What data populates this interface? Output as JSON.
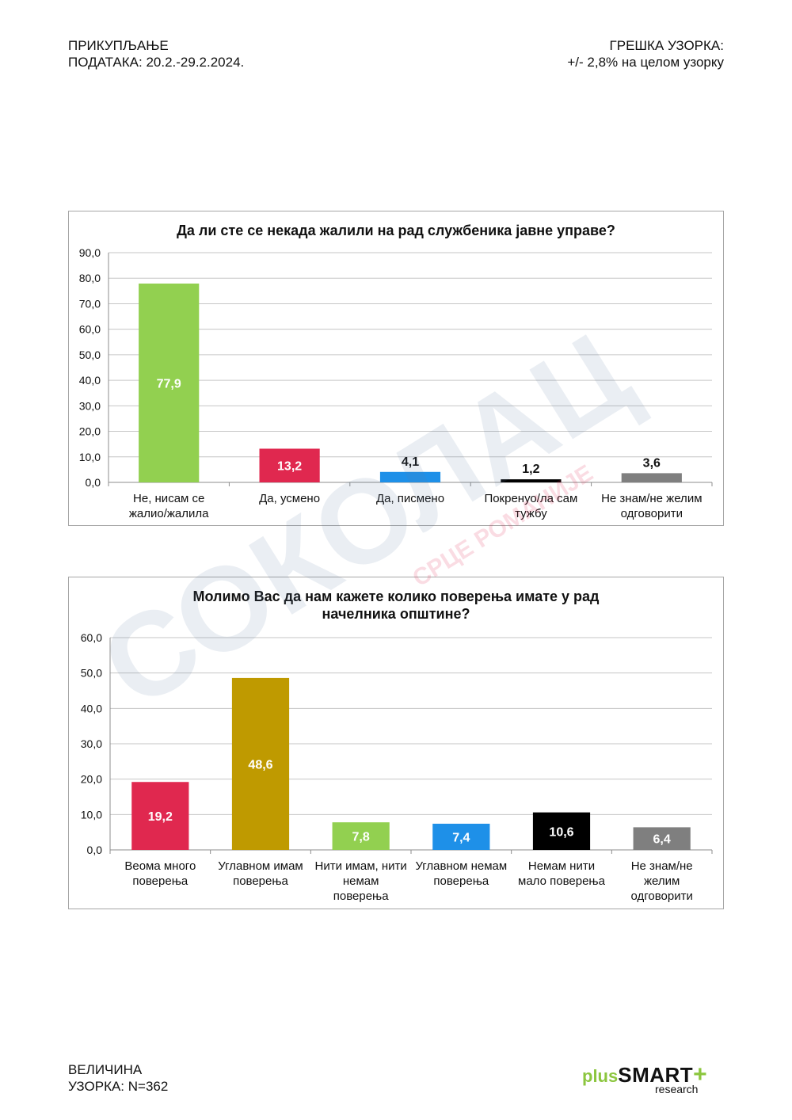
{
  "header": {
    "left_line1": "ПРИКУПЉАЊЕ",
    "left_line2": "ПОДАТАКА: 20.2.-29.2.2024.",
    "right_line1": "ГРЕШКА УЗОРКА:",
    "right_line2": "+/- 2,8% на целом узорку"
  },
  "footer": {
    "left_line1": "ВЕЛИЧИНА",
    "left_line2": "УЗОРКА: N=362"
  },
  "logo": {
    "plus": "plus",
    "smart": "SMART",
    "cross": "+",
    "research": "research"
  },
  "watermark": {
    "main": "СОКОЛАЦ",
    "sub": "СРЦЕ РОМАНИЈЕ"
  },
  "chart_data": [
    {
      "type": "bar",
      "title_lines": [
        "Да ли сте се некада жалили на рад службеника јавне управе?"
      ],
      "categories": [
        [
          "Не, нисам се",
          "жалио/жалила"
        ],
        [
          "Да, усмено"
        ],
        [
          "Да, писмено"
        ],
        [
          "Покренуо/ла сам",
          "тужбу"
        ],
        [
          "Не знам/не желим",
          "одговорити"
        ]
      ],
      "values": [
        77.9,
        13.2,
        4.1,
        1.2,
        3.6
      ],
      "value_labels": [
        "77,9",
        "13,2",
        "4,1",
        "1,2",
        "3,6"
      ],
      "colors": [
        "#92d050",
        "#e0284f",
        "#1e90e8",
        "#000000",
        "#7f7f7f"
      ],
      "label_inside": [
        true,
        true,
        false,
        false,
        false
      ],
      "yticks": [
        "0,0",
        "10,0",
        "20,0",
        "30,0",
        "40,0",
        "50,0",
        "60,0",
        "70,0",
        "80,0",
        "90,0"
      ],
      "ylim": [
        0,
        90
      ],
      "grid": true
    },
    {
      "type": "bar",
      "title_lines": [
        "Молимо Вас да нам кажете колико поверења имате у рад",
        "начелника општине?"
      ],
      "categories": [
        [
          "Веома много",
          "поверења"
        ],
        [
          "Углавном имам",
          "поверења"
        ],
        [
          "Нити имам, нити",
          "немам",
          "поверења"
        ],
        [
          "Углавном немам",
          "поверења"
        ],
        [
          "Немам нити",
          "мало поверења"
        ],
        [
          "Не знам/не",
          "желим",
          "одговорити"
        ]
      ],
      "values": [
        19.2,
        48.6,
        7.8,
        7.4,
        10.6,
        6.4
      ],
      "value_labels": [
        "19,2",
        "48,6",
        "7,8",
        "7,4",
        "10,6",
        "6,4"
      ],
      "colors": [
        "#e0284f",
        "#bf9a00",
        "#92d050",
        "#1e90e8",
        "#000000",
        "#7f7f7f"
      ],
      "label_inside": [
        true,
        true,
        true,
        true,
        true,
        true
      ],
      "yticks": [
        "0,0",
        "10,0",
        "20,0",
        "30,0",
        "40,0",
        "50,0",
        "60,0"
      ],
      "ylim": [
        0,
        60
      ],
      "grid": true
    }
  ]
}
